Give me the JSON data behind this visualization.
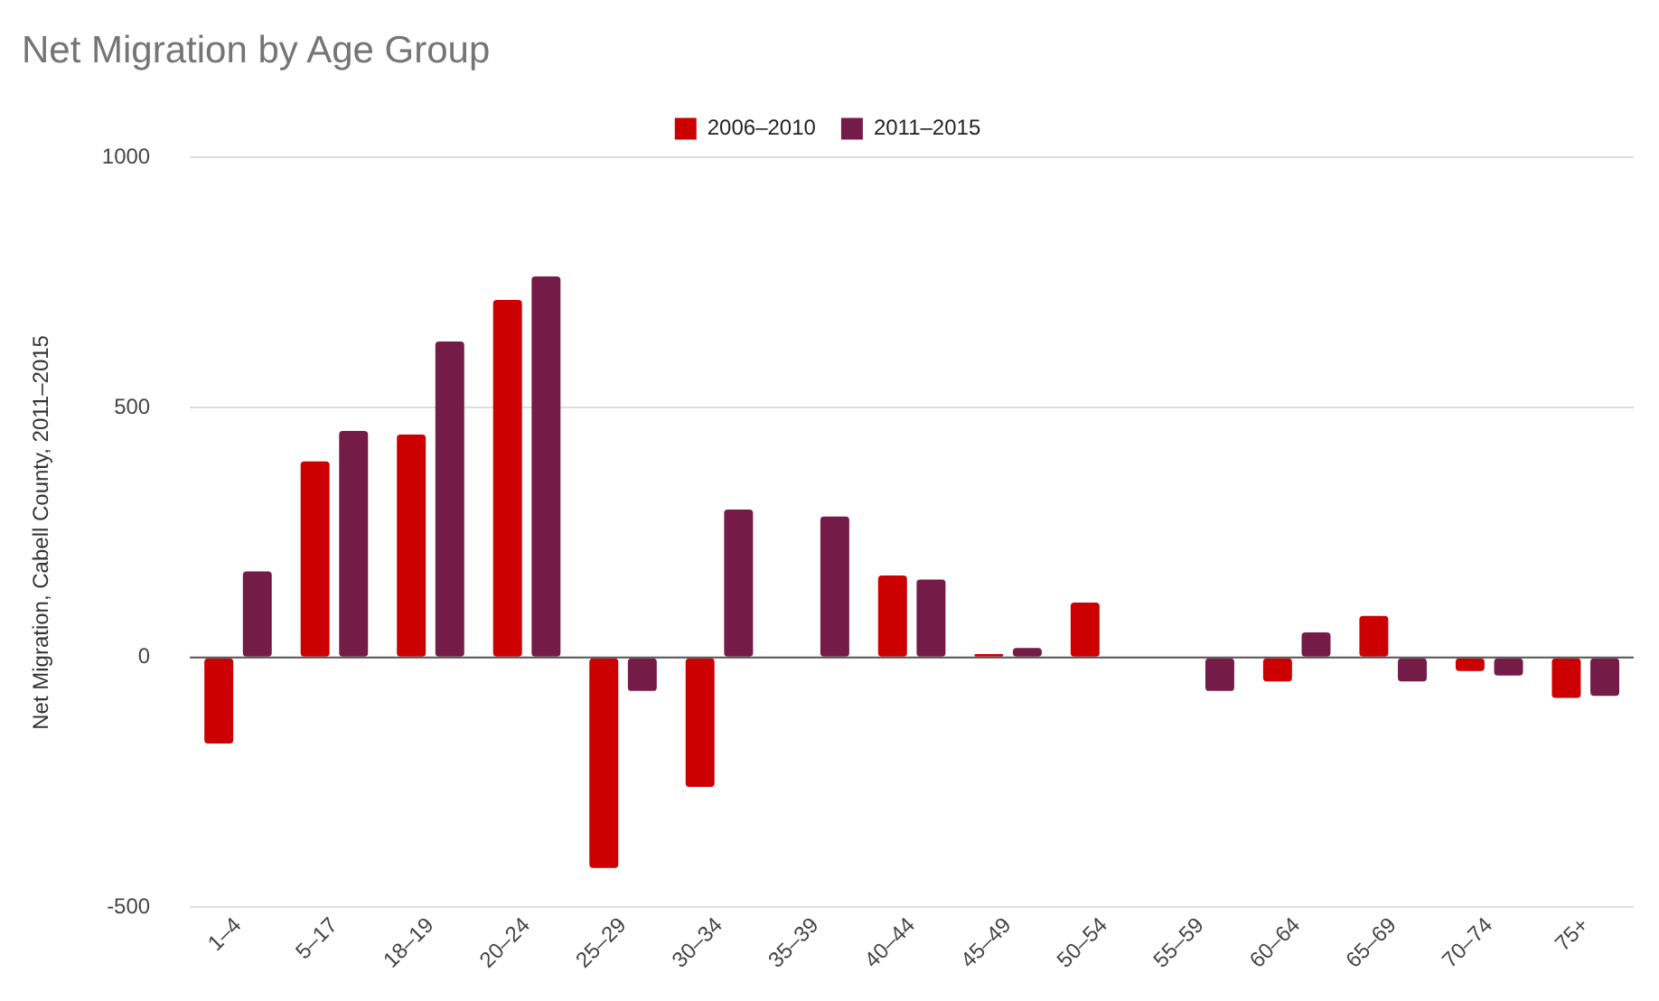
{
  "chart_data": {
    "type": "bar",
    "title": "Net Migration by Age Group",
    "ylabel": "Net Migration, Cabell County, 2011–2015",
    "categories": [
      "1–4",
      "5–17",
      "18–19",
      "20–24",
      "25–29",
      "30–34",
      "35–39",
      "40–44",
      "45–49",
      "50–54",
      "55–59",
      "60–64",
      "65–69",
      "70–74",
      "75+"
    ],
    "series": [
      {
        "name": "2006–2010",
        "color": "#cc0000",
        "values": [
          -172,
          392,
          446,
          715,
          -421,
          -259,
          null,
          164,
          7,
          110,
          null,
          -48,
          83,
          -27,
          -81
        ]
      },
      {
        "name": "2011–2015",
        "color": "#741b47",
        "values": [
          172,
          453,
          632,
          762,
          -67,
          296,
          282,
          156,
          19,
          null,
          -67,
          50,
          -48,
          -36,
          -77
        ]
      }
    ],
    "ylim": [
      -500,
      1000
    ],
    "yticks": [
      -500,
      0,
      500,
      1000
    ],
    "grid": "y",
    "legend": "top"
  }
}
